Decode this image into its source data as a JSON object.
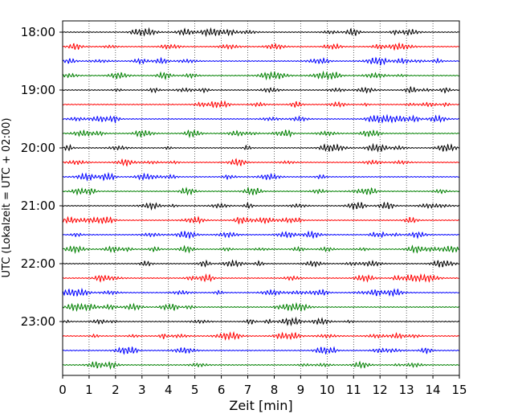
{
  "chart_data": {
    "type": "line",
    "chart_kind": "helicorder",
    "title": "",
    "xlabel": "Zeit  [min]",
    "ylabel": "UTC (Lokalzeit = UTC + 02:00)",
    "xlim": [
      0,
      15
    ],
    "x_ticks": [
      "0",
      "1",
      "2",
      "3",
      "4",
      "5",
      "6",
      "7",
      "8",
      "9",
      "10",
      "11",
      "12",
      "13",
      "14",
      "15"
    ],
    "y_ticks": [
      "18:00",
      "19:00",
      "20:00",
      "21:00",
      "22:00",
      "23:00"
    ],
    "vertical_grid": true,
    "trace_interval_min": 15,
    "trace_color_cycle": [
      "#000000",
      "#ff0000",
      "#0000ff",
      "#008000"
    ],
    "traces": [
      {
        "start": "18:00",
        "color": "#000000"
      },
      {
        "start": "18:15",
        "color": "#ff0000"
      },
      {
        "start": "18:30",
        "color": "#0000ff"
      },
      {
        "start": "18:45",
        "color": "#008000"
      },
      {
        "start": "19:00",
        "color": "#000000"
      },
      {
        "start": "19:15",
        "color": "#ff0000"
      },
      {
        "start": "19:30",
        "color": "#0000ff"
      },
      {
        "start": "19:45",
        "color": "#008000"
      },
      {
        "start": "20:00",
        "color": "#000000"
      },
      {
        "start": "20:15",
        "color": "#ff0000"
      },
      {
        "start": "20:30",
        "color": "#0000ff"
      },
      {
        "start": "20:45",
        "color": "#008000"
      },
      {
        "start": "21:00",
        "color": "#000000"
      },
      {
        "start": "21:15",
        "color": "#ff0000"
      },
      {
        "start": "21:30",
        "color": "#0000ff"
      },
      {
        "start": "21:45",
        "color": "#008000"
      },
      {
        "start": "22:00",
        "color": "#000000"
      },
      {
        "start": "22:15",
        "color": "#ff0000"
      },
      {
        "start": "22:30",
        "color": "#0000ff"
      },
      {
        "start": "22:45",
        "color": "#008000"
      },
      {
        "start": "23:00",
        "color": "#000000"
      },
      {
        "start": "23:15",
        "color": "#ff0000"
      },
      {
        "start": "23:30",
        "color": "#0000ff"
      },
      {
        "start": "23:45",
        "color": "#008000"
      }
    ]
  }
}
